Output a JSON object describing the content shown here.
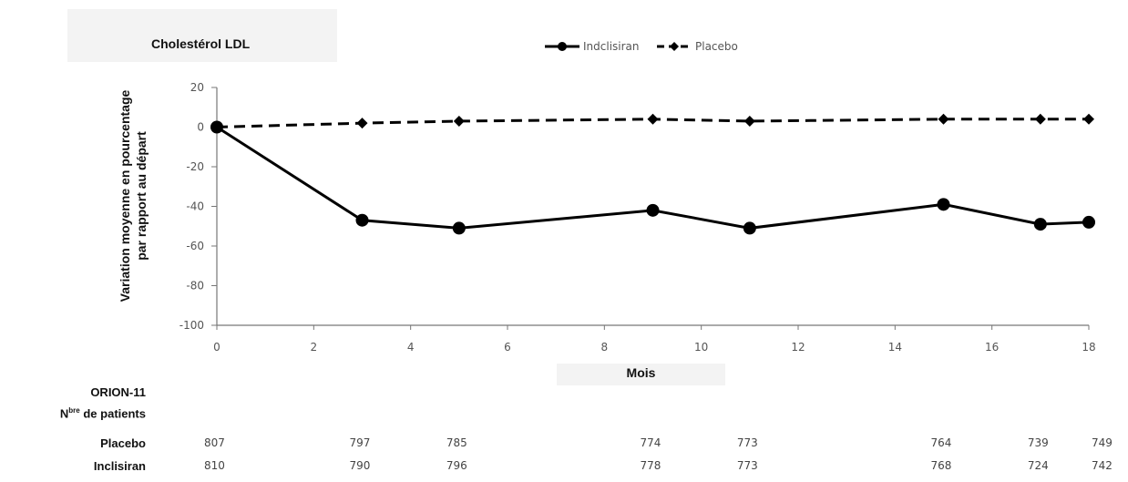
{
  "chart_data": {
    "type": "line",
    "title": "Cholestérol LDL",
    "xlabel": "Mois",
    "ylabel_line1": "Variation moyenne en pourcentage",
    "ylabel_line2": "par rapport au départ",
    "xlim": [
      0,
      18
    ],
    "ylim": [
      -100,
      20
    ],
    "xticks": [
      0,
      2,
      4,
      6,
      8,
      10,
      12,
      14,
      16,
      18
    ],
    "yticks": [
      20,
      0,
      -20,
      -40,
      -60,
      -80,
      -100
    ],
    "grid": false,
    "legend_position": "top-center",
    "series": [
      {
        "name": "Indclisiran",
        "style": "solid",
        "color": "#000000",
        "x": [
          0,
          3,
          5,
          9,
          11,
          15,
          17,
          18
        ],
        "y": [
          0,
          -47,
          -51,
          -42,
          -51,
          -39,
          -49,
          -48
        ]
      },
      {
        "name": "Placebo",
        "style": "dashed",
        "color": "#000000",
        "x": [
          0,
          3,
          5,
          9,
          11,
          15,
          17,
          18
        ],
        "y": [
          0,
          2,
          3,
          4,
          3,
          4,
          4,
          4
        ]
      }
    ]
  },
  "table": {
    "study": "ORION-11",
    "n_label_main": "N",
    "n_label_sup": "bre",
    "n_label_rest": " de patients",
    "rows": [
      {
        "label": "Placebo",
        "values": [
          "807",
          "797",
          "785",
          "774",
          "773",
          "764",
          "739",
          "749"
        ]
      },
      {
        "label": "Inclisiran",
        "values": [
          "810",
          "790",
          "796",
          "778",
          "773",
          "768",
          "724",
          "742"
        ]
      }
    ]
  }
}
